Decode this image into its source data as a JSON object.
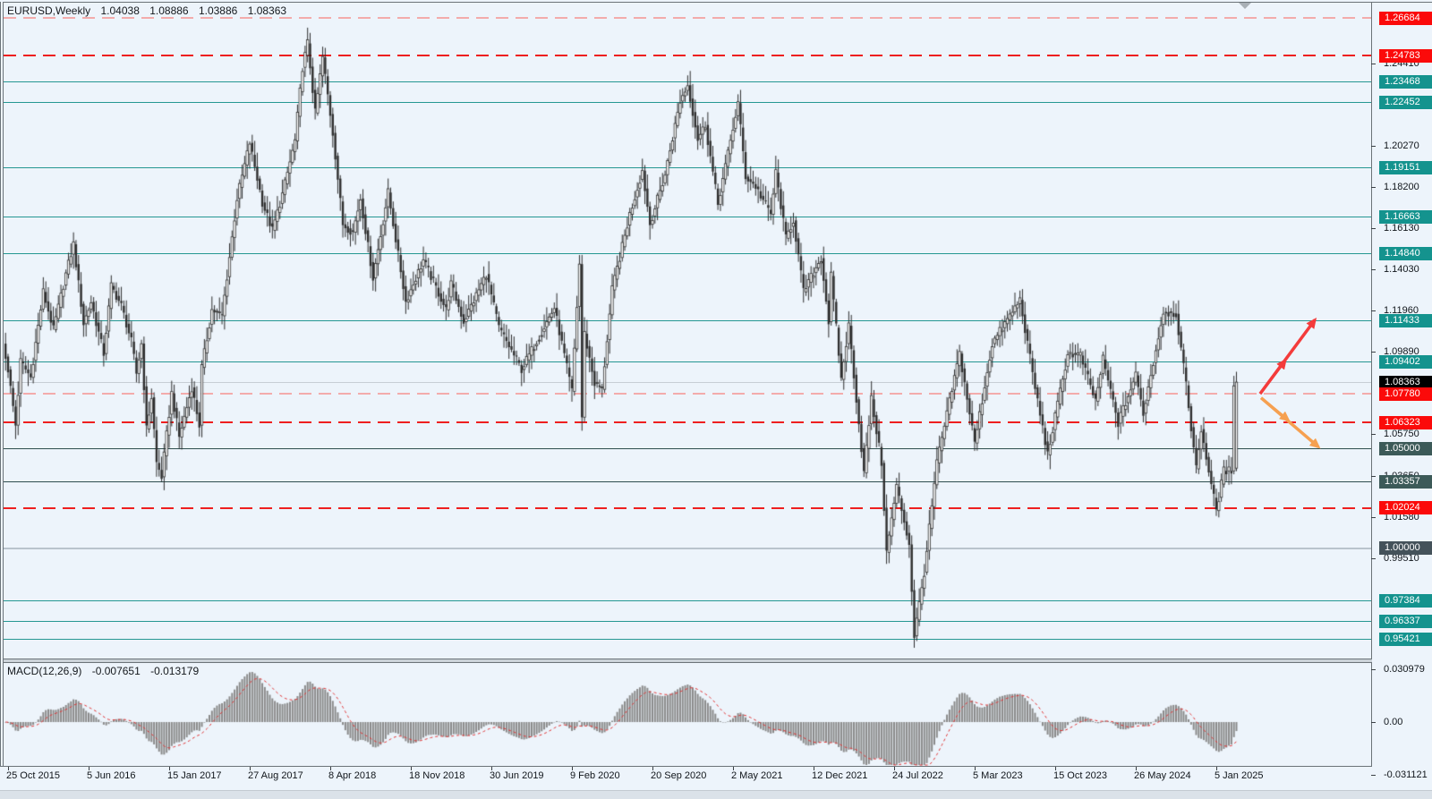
{
  "header": {
    "symbol_period": "EURUSD,Weekly",
    "open": "1.04038",
    "high": "1.08886",
    "low": "1.03886",
    "close": "1.08363"
  },
  "macd_header": {
    "label": "MACD(12,26,9)",
    "macd_value": "-0.007651",
    "signal_value": "-0.013179"
  },
  "price_axis": {
    "tick_labels": [
      {
        "text": "1.24410",
        "price": 1.2441
      },
      {
        "text": "1.20270",
        "price": 1.2027
      },
      {
        "text": "1.18200",
        "price": 1.182
      },
      {
        "text": "1.16130",
        "price": 1.1613
      },
      {
        "text": "1.14030",
        "price": 1.1403
      },
      {
        "text": "1.11960",
        "price": 1.1196
      },
      {
        "text": "1.09890",
        "price": 1.0989
      },
      {
        "text": "1.05750",
        "price": 1.0575
      },
      {
        "text": "1.03650",
        "price": 1.0365
      },
      {
        "text": "1.01580",
        "price": 1.0158
      },
      {
        "text": "0.99510",
        "price": 0.9951
      }
    ]
  },
  "macd_axis": {
    "labels": [
      {
        "text": "0.030979",
        "value": 0.030979
      },
      {
        "text": "0.00",
        "value": 0
      },
      {
        "text": "-0.031121",
        "value": -0.031121
      }
    ]
  },
  "time_axis": {
    "tick_interval_weeks": 32,
    "labels": [
      "25 Oct 2015",
      "5 Jun 2016",
      "15 Jan 2017",
      "27 Aug 2017",
      "8 Apr 2018",
      "18 Nov 2018",
      "30 Jun 2019",
      "9 Feb 2020",
      "20 Sep 2020",
      "2 May 2021",
      "12 Dec 2021",
      "24 Jul 2022",
      "5 Mar 2023",
      "15 Oct 2023",
      "26 May 2024",
      "5 Jan 2025"
    ]
  },
  "chart_data": {
    "type": "candlestick_with_macd",
    "symbol": "EURUSD",
    "timeframe": "Weekly",
    "last_bar": {
      "open": 1.04038,
      "high": 1.08886,
      "low": 1.03886,
      "close": 1.08363
    },
    "epoch_date": "2015-10-25",
    "levels": [
      {
        "text": "1.26684",
        "price": 1.26684,
        "line": "pink",
        "label": "red"
      },
      {
        "text": "1.24783",
        "price": 1.24783,
        "line": "red",
        "label": "red"
      },
      {
        "text": "1.23468",
        "price": 1.23468,
        "line": "teal",
        "label": "teal"
      },
      {
        "text": "1.22452",
        "price": 1.22452,
        "line": "teal",
        "label": "teal"
      },
      {
        "text": "1.19151",
        "price": 1.19151,
        "line": "teal",
        "label": "teal"
      },
      {
        "text": "1.16663",
        "price": 1.16663,
        "line": "teal",
        "label": "teal"
      },
      {
        "text": "1.14840",
        "price": 1.1484,
        "line": "teal",
        "label": "teal"
      },
      {
        "text": "1.11433",
        "price": 1.11433,
        "line": "teal",
        "label": "teal"
      },
      {
        "text": "1.09402",
        "price": 1.09402,
        "line": "teal",
        "label": "teal"
      },
      {
        "text": "1.08363",
        "price": 1.08363,
        "line": "silver",
        "label": "black"
      },
      {
        "text": "1.07780",
        "price": 1.0778,
        "line": "pink",
        "label": "red"
      },
      {
        "text": "1.06323",
        "price": 1.06323,
        "line": "red",
        "label": "red"
      },
      {
        "text": "1.05000",
        "price": 1.05,
        "line": "dark",
        "label": "dark"
      },
      {
        "text": "1.03357",
        "price": 1.03357,
        "line": "dark",
        "label": "dark"
      },
      {
        "text": "1.02024",
        "price": 1.02024,
        "line": "red",
        "label": "red"
      },
      {
        "text": "1.00000",
        "price": 1.0,
        "line": "silver2",
        "label": "slate"
      },
      {
        "text": "0.97384",
        "price": 0.97384,
        "line": "teal",
        "label": "teal"
      },
      {
        "text": "0.96337",
        "price": 0.96337,
        "line": "teal",
        "label": "teal"
      },
      {
        "text": "0.95421",
        "price": 0.95421,
        "line": "teal",
        "label": "teal"
      }
    ],
    "price_anchors": [
      [
        "2015-10-18",
        1.103
      ],
      [
        "2015-11-01",
        1.09
      ],
      [
        "2015-11-22",
        1.062
      ],
      [
        "2015-12-06",
        1.094
      ],
      [
        "2016-01-03",
        1.086
      ],
      [
        "2016-02-07",
        1.129
      ],
      [
        "2016-03-06",
        1.11
      ],
      [
        "2016-04-10",
        1.138
      ],
      [
        "2016-05-01",
        1.153
      ],
      [
        "2016-05-29",
        1.113
      ],
      [
        "2016-06-19",
        1.124
      ],
      [
        "2016-07-24",
        1.098
      ],
      [
        "2016-08-14",
        1.132
      ],
      [
        "2016-09-11",
        1.122
      ],
      [
        "2016-10-09",
        1.104
      ],
      [
        "2016-10-23",
        1.088
      ],
      [
        "2016-11-06",
        1.103
      ],
      [
        "2016-11-20",
        1.06
      ],
      [
        "2016-12-04",
        1.076
      ],
      [
        "2016-12-18",
        1.043
      ],
      [
        "2017-01-01",
        1.036
      ],
      [
        "2017-01-29",
        1.078
      ],
      [
        "2017-02-19",
        1.056
      ],
      [
        "2017-03-26",
        1.081
      ],
      [
        "2017-04-16",
        1.062
      ],
      [
        "2017-04-23",
        1.091
      ],
      [
        "2017-05-21",
        1.12
      ],
      [
        "2017-06-18",
        1.117
      ],
      [
        "2017-07-30",
        1.176
      ],
      [
        "2017-09-03",
        1.204
      ],
      [
        "2017-10-08",
        1.174
      ],
      [
        "2017-11-05",
        1.16
      ],
      [
        "2017-12-03",
        1.178
      ],
      [
        "2018-01-07",
        1.205
      ],
      [
        "2018-01-28",
        1.242
      ],
      [
        "2018-02-11",
        1.254
      ],
      [
        "2018-03-04",
        1.219
      ],
      [
        "2018-03-25",
        1.247
      ],
      [
        "2018-04-22",
        1.209
      ],
      [
        "2018-05-20",
        1.163
      ],
      [
        "2018-06-17",
        1.159
      ],
      [
        "2018-07-08",
        1.176
      ],
      [
        "2018-08-12",
        1.136
      ],
      [
        "2018-09-23",
        1.179
      ],
      [
        "2018-11-11",
        1.124
      ],
      [
        "2018-12-30",
        1.145
      ],
      [
        "2019-03-03",
        1.12
      ],
      [
        "2019-03-17",
        1.133
      ],
      [
        "2019-04-21",
        1.114
      ],
      [
        "2019-06-23",
        1.138
      ],
      [
        "2019-07-28",
        1.111
      ],
      [
        "2019-09-29",
        1.09
      ],
      [
        "2019-12-29",
        1.121
      ],
      [
        "2020-02-16",
        1.079
      ],
      [
        "2020-03-08",
        1.143
      ],
      [
        "2020-03-15",
        1.066
      ],
      [
        "2020-03-22",
        1.108
      ],
      [
        "2020-04-19",
        1.083
      ],
      [
        "2020-05-10",
        1.08
      ],
      [
        "2020-06-07",
        1.13
      ],
      [
        "2020-07-26",
        1.168
      ],
      [
        "2020-08-30",
        1.19
      ],
      [
        "2020-09-20",
        1.163
      ],
      [
        "2020-11-01",
        1.188
      ],
      [
        "2020-12-13",
        1.225
      ],
      [
        "2021-01-03",
        1.233
      ],
      [
        "2021-01-31",
        1.206
      ],
      [
        "2021-02-21",
        1.213
      ],
      [
        "2021-03-28",
        1.173
      ],
      [
        "2021-05-23",
        1.224
      ],
      [
        "2021-06-13",
        1.187
      ],
      [
        "2021-07-11",
        1.182
      ],
      [
        "2021-08-22",
        1.168
      ],
      [
        "2021-09-05",
        1.189
      ],
      [
        "2021-10-03",
        1.156
      ],
      [
        "2021-10-24",
        1.165
      ],
      [
        "2021-11-21",
        1.129
      ],
      [
        "2022-01-09",
        1.146
      ],
      [
        "2022-01-30",
        1.114
      ],
      [
        "2022-02-06",
        1.137
      ],
      [
        "2022-03-06",
        1.085
      ],
      [
        "2022-03-27",
        1.112
      ],
      [
        "2022-05-08",
        1.038
      ],
      [
        "2022-05-29",
        1.075
      ],
      [
        "2022-06-26",
        1.043
      ],
      [
        "2022-07-10",
        0.998
      ],
      [
        "2022-08-07",
        1.031
      ],
      [
        "2022-09-11",
        1.002
      ],
      [
        "2022-09-25",
        0.956
      ],
      [
        "2022-10-23",
        0.988
      ],
      [
        "2022-11-27",
        1.043
      ],
      [
        "2023-01-29",
        1.098
      ],
      [
        "2023-03-12",
        1.053
      ],
      [
        "2023-04-30",
        1.103
      ],
      [
        "2023-07-16",
        1.125
      ],
      [
        "2023-08-27",
        1.081
      ],
      [
        "2023-10-01",
        1.047
      ],
      [
        "2023-11-26",
        1.098
      ],
      [
        "2023-12-31",
        1.097
      ],
      [
        "2024-02-11",
        1.074
      ],
      [
        "2024-03-03",
        1.095
      ],
      [
        "2024-04-14",
        1.063
      ],
      [
        "2024-06-02",
        1.087
      ],
      [
        "2024-06-23",
        1.068
      ],
      [
        "2024-08-18",
        1.119
      ],
      [
        "2024-09-22",
        1.118
      ],
      [
        "2024-10-20",
        1.082
      ],
      [
        "2024-11-17",
        1.04
      ],
      [
        "2024-12-01",
        1.06
      ],
      [
        "2024-12-29",
        1.032
      ],
      [
        "2025-01-12",
        1.019
      ],
      [
        "2025-02-02",
        1.039
      ],
      [
        "2025-02-23",
        1.039
      ],
      [
        "2025-03-02",
        1.0836
      ]
    ],
    "macd": {
      "fast": 12,
      "slow": 26,
      "signal": 9,
      "current_macd": -0.007651,
      "current_signal": -0.013179,
      "axis_max": 0.030979,
      "axis_min": -0.031121
    },
    "trend_arrows": [
      {
        "direction": "up",
        "color": "#f43b3b",
        "width": 3,
        "from": {
          "week": 497.4,
          "price": 1.0778
        },
        "to": {
          "week": 507.4,
          "price": 1.0945
        }
      },
      {
        "direction": "up",
        "color": "#f43b3b",
        "width": 3.5,
        "from": {
          "week": 497.4,
          "price": 1.0778
        },
        "to": {
          "week": 519.2,
          "price": 1.115
        }
      },
      {
        "direction": "down",
        "color": "#f6a050",
        "width": 3,
        "from": {
          "week": 497.8,
          "price": 1.0757
        },
        "to": {
          "week": 508.6,
          "price": 1.0645
        }
      },
      {
        "direction": "down",
        "color": "#f6a050",
        "width": 3.5,
        "from": {
          "week": 497.8,
          "price": 1.0757
        },
        "to": {
          "week": 520.6,
          "price": 1.051
        }
      }
    ]
  },
  "colors": {
    "background": "#edf4fb",
    "teal_line": "#259792",
    "red_dashed_line": "#ee1f1f",
    "pale_pink_dashed_line": "#f3abab",
    "dark_line": "#2f4f4f",
    "current_price_line": "#c7ced5",
    "bull_candle": "#ffffff",
    "bear_candle": "#2e2e2e",
    "candle_outline": "#2e2e2e",
    "macd_histogram": "#8a8a8a",
    "macd_signal": "#e03030",
    "arrow_up": "#f43b3b",
    "arrow_down": "#f6a050"
  }
}
